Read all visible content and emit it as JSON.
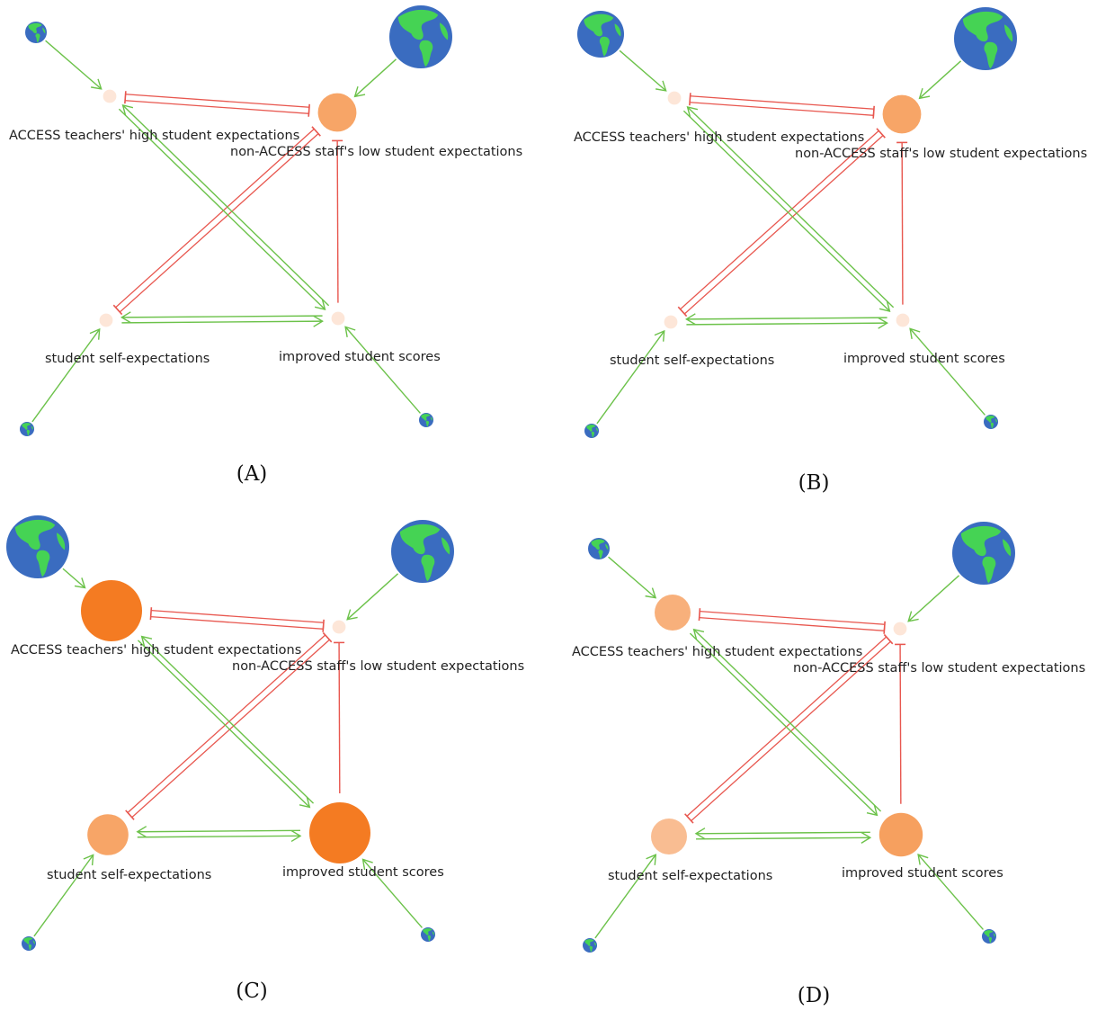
{
  "figure": {
    "panels": [
      {
        "caption": "(A)",
        "nodes": [
          {
            "id": "access",
            "label": "ACCESS teachers' high student expectations",
            "level": 0.05,
            "color": "#fde6d8"
          },
          {
            "id": "nonaccess",
            "label": "non-ACCESS staff's low student expectations",
            "level": 0.55,
            "color": "#f7a567"
          },
          {
            "id": "self",
            "label": "student self-expectations",
            "level": 0.05,
            "color": "#fde6d8"
          },
          {
            "id": "scores",
            "label": "improved student scores",
            "level": 0.05,
            "color": "#fde6d8"
          }
        ],
        "globes": [
          {
            "target": "access",
            "size": "small"
          },
          {
            "target": "nonaccess",
            "size": "large"
          },
          {
            "target": "self",
            "size": "tiny"
          },
          {
            "target": "scores",
            "size": "tiny"
          }
        ]
      },
      {
        "caption": "(B)",
        "nodes": [
          {
            "id": "access",
            "label": "ACCESS teachers' high student expectations",
            "level": 0.05,
            "color": "#fde6d8"
          },
          {
            "id": "nonaccess",
            "label": "non-ACCESS staff's low student expectations",
            "level": 0.55,
            "color": "#f7a567"
          },
          {
            "id": "self",
            "label": "student self-expectations",
            "level": 0.05,
            "color": "#fde6d8"
          },
          {
            "id": "scores",
            "label": "improved student scores",
            "level": 0.05,
            "color": "#fde6d8"
          }
        ],
        "globes": [
          {
            "target": "access",
            "size": "medium"
          },
          {
            "target": "nonaccess",
            "size": "large"
          },
          {
            "target": "self",
            "size": "tiny"
          },
          {
            "target": "scores",
            "size": "tiny"
          }
        ]
      },
      {
        "caption": "(C)",
        "nodes": [
          {
            "id": "access",
            "label": "ACCESS teachers' high student expectations",
            "level": 1.0,
            "color": "#f47b22"
          },
          {
            "id": "nonaccess",
            "label": "non-ACCESS staff's low student expectations",
            "level": 0.05,
            "color": "#fde6d8"
          },
          {
            "id": "self",
            "label": "student self-expectations",
            "level": 0.6,
            "color": "#f7a567"
          },
          {
            "id": "scores",
            "label": "improved student scores",
            "level": 1.0,
            "color": "#f47b22"
          }
        ],
        "globes": [
          {
            "target": "access",
            "size": "large"
          },
          {
            "target": "nonaccess",
            "size": "large"
          },
          {
            "target": "self",
            "size": "tiny"
          },
          {
            "target": "scores",
            "size": "tiny"
          }
        ]
      },
      {
        "caption": "(D)",
        "nodes": [
          {
            "id": "access",
            "label": "ACCESS teachers' high student expectations",
            "level": 0.5,
            "color": "#f8b07b"
          },
          {
            "id": "nonaccess",
            "label": "non-ACCESS staff's low student expectations",
            "level": 0.05,
            "color": "#fde6d8"
          },
          {
            "id": "self",
            "label": "student self-expectations",
            "level": 0.5,
            "color": "#f9bd92"
          },
          {
            "id": "scores",
            "label": "improved student scores",
            "level": 0.65,
            "color": "#f6a05f"
          }
        ],
        "globes": [
          {
            "target": "access",
            "size": "small"
          },
          {
            "target": "nonaccess",
            "size": "large"
          },
          {
            "target": "self",
            "size": "tiny"
          },
          {
            "target": "scores",
            "size": "tiny"
          }
        ]
      }
    ],
    "edges": [
      {
        "from": "access",
        "to": "nonaccess",
        "kind": "inhibit",
        "style": "double"
      },
      {
        "from": "nonaccess",
        "to": "self",
        "kind": "inhibit",
        "style": "double"
      },
      {
        "from": "scores",
        "to": "nonaccess",
        "kind": "inhibit",
        "style": "single"
      },
      {
        "from": "access",
        "to": "scores",
        "kind": "promote",
        "style": "bidirectional"
      },
      {
        "from": "self",
        "to": "scores",
        "kind": "promote",
        "style": "bidirectional"
      }
    ],
    "colors": {
      "promote": "#6cc24a",
      "inhibit": "#e8574f",
      "ocean": "#3a6cc0",
      "land": "#45d354"
    }
  }
}
